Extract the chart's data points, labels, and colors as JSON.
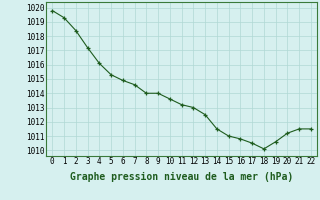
{
  "x": [
    0,
    1,
    2,
    3,
    4,
    5,
    6,
    7,
    8,
    9,
    10,
    11,
    12,
    13,
    14,
    15,
    16,
    17,
    18,
    19,
    20,
    21,
    22
  ],
  "y": [
    1019.8,
    1019.3,
    1018.4,
    1017.2,
    1016.1,
    1015.3,
    1014.9,
    1014.6,
    1014.0,
    1014.0,
    1013.6,
    1013.2,
    1013.0,
    1012.5,
    1011.5,
    1011.0,
    1010.8,
    1010.5,
    1010.1,
    1010.6,
    1011.2,
    1011.5,
    1011.5
  ],
  "line_color": "#1e5c1e",
  "marker_color": "#1e5c1e",
  "bg_color": "#d6f0ef",
  "grid_color": "#b0d8d4",
  "xlabel": "Graphe pression niveau de la mer (hPa)",
  "xlabel_fontsize": 7,
  "ylabel_ticks": [
    1010,
    1011,
    1012,
    1013,
    1014,
    1015,
    1016,
    1017,
    1018,
    1019,
    1020
  ],
  "ylim": [
    1009.6,
    1020.4
  ],
  "xlim": [
    -0.5,
    22.5
  ],
  "xticks": [
    0,
    1,
    2,
    3,
    4,
    5,
    6,
    7,
    8,
    9,
    10,
    11,
    12,
    13,
    14,
    15,
    16,
    17,
    18,
    19,
    20,
    21,
    22
  ],
  "tick_fontsize": 5.5
}
